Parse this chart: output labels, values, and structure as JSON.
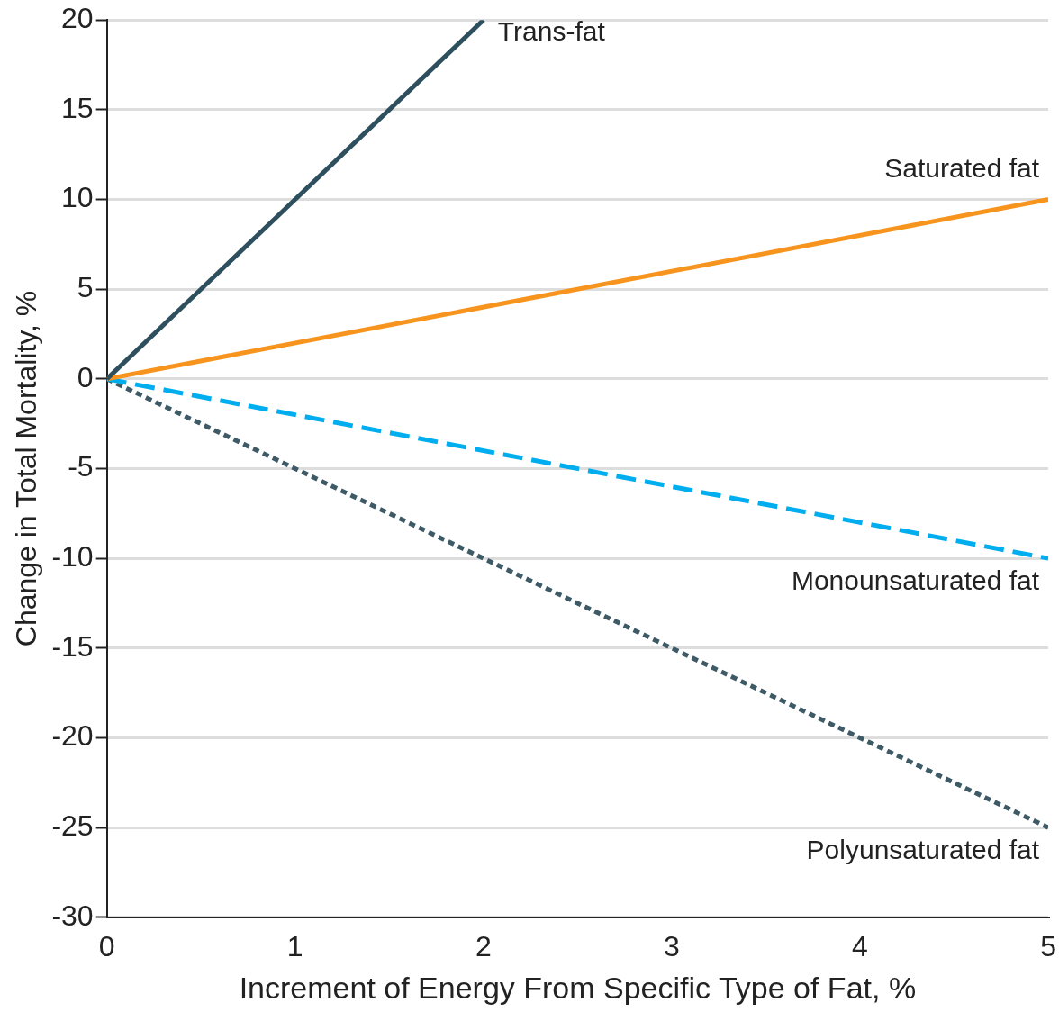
{
  "chart_data": {
    "type": "line",
    "xlabel": "Increment of Energy From Specific Type of Fat, %",
    "ylabel": "Change in Total Mortality, %",
    "xlim": [
      0,
      5
    ],
    "xticks": [
      0,
      1,
      2,
      3,
      4,
      5
    ],
    "ylim": [
      -30,
      20
    ],
    "yticks": [
      -30,
      -25,
      -20,
      -15,
      -10,
      -5,
      0,
      5,
      10,
      15,
      20
    ],
    "grid": "y",
    "legend": false,
    "marker": "none",
    "series": [
      {
        "name": "Trans-fat",
        "color": "#2e4f5e",
        "x": [
          0,
          2
        ],
        "values": [
          0,
          20
        ],
        "line_style": "solid"
      },
      {
        "name": "Saturated fat",
        "color": "#f7941d",
        "x": [
          0,
          5
        ],
        "values": [
          0,
          10
        ],
        "line_style": "solid"
      },
      {
        "name": "Monounsaturated fat",
        "color": "#00aeef",
        "x": [
          0,
          5
        ],
        "values": [
          0,
          -10
        ],
        "line_style": "dashed"
      },
      {
        "name": "Polyunsaturated fat",
        "color": "#3d5a66",
        "x": [
          0,
          5
        ],
        "values": [
          0,
          -25
        ],
        "line_style": "dotted"
      }
    ]
  }
}
